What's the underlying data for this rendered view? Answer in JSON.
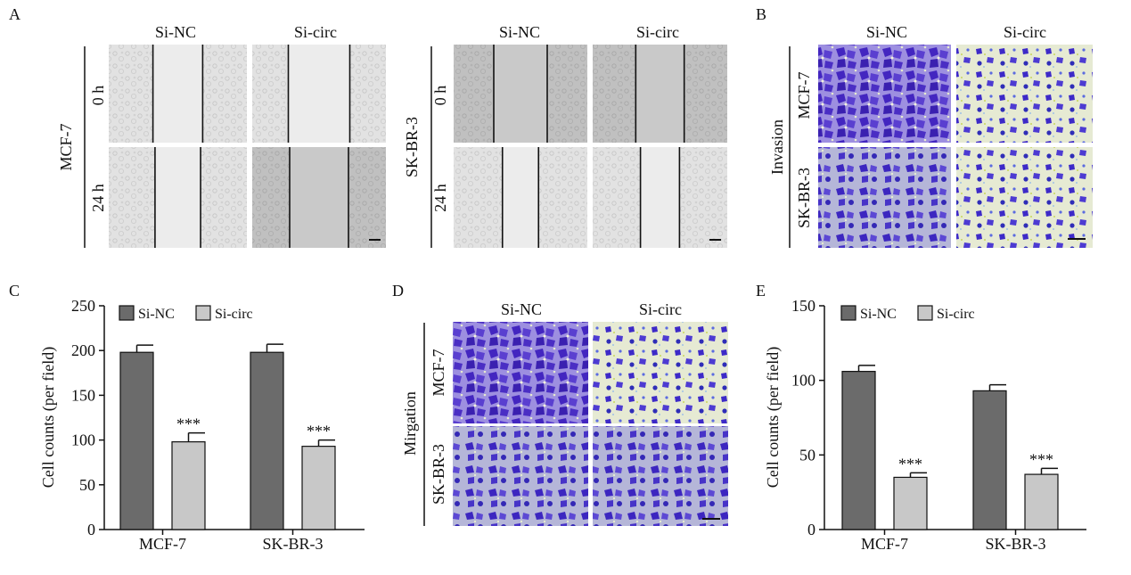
{
  "figure": {
    "panel_labels": [
      "A",
      "B",
      "C",
      "D",
      "E"
    ],
    "colors": {
      "si_nc_bar": "#6b6b6b",
      "si_circ_bar": "#c8c8c8",
      "scratch_bg_light": "#dedede",
      "scratch_bg_dark": "#b9b9b9",
      "stain_background": "#e8ecd7",
      "stain_cell": "#4a2ec4",
      "stain_cell_dark": "#2a1a9a"
    }
  },
  "panel_a": {
    "left_block": {
      "cell_line": "MCF-7",
      "columns": [
        "Si-NC",
        "Si-circ"
      ],
      "rows": [
        "0 h",
        "24 h"
      ],
      "gap_fraction": [
        [
          0.36,
          0.46
        ],
        [
          0.33,
          0.44
        ]
      ]
    },
    "right_block": {
      "cell_line": "SK-BR-3",
      "columns": [
        "Si-NC",
        "Si-circ"
      ],
      "rows": [
        "0 h",
        "24 h"
      ],
      "gap_fraction": [
        [
          0.4,
          0.36
        ],
        [
          0.27,
          0.29
        ]
      ]
    }
  },
  "panel_b": {
    "columns": [
      "Si-NC",
      "Si-circ"
    ],
    "rows": [
      "MCF-7",
      "SK-BR-3"
    ],
    "group_label": "Invasion"
  },
  "panel_d": {
    "columns": [
      "Si-NC",
      "Si-circ"
    ],
    "rows": [
      "MCF-7",
      "SK-BR-3"
    ],
    "group_label": "Mirgation"
  },
  "chart_data": [
    {
      "type": "bar",
      "panel": "C",
      "categories": [
        "MCF-7",
        "SK-BR-3"
      ],
      "series": [
        {
          "name": "Si-NC",
          "values": [
            198,
            198
          ],
          "errors": [
            8,
            9
          ]
        },
        {
          "name": "Si-circ",
          "values": [
            98,
            93
          ],
          "errors": [
            10,
            7
          ]
        }
      ],
      "significance": [
        "***",
        "***"
      ],
      "ylabel": "Cell counts (per field)",
      "ylim": [
        0,
        250
      ],
      "yticks": [
        0,
        50,
        100,
        150,
        200,
        250
      ],
      "legend": "top"
    },
    {
      "type": "bar",
      "panel": "E",
      "categories": [
        "MCF-7",
        "SK-BR-3"
      ],
      "series": [
        {
          "name": "Si-NC",
          "values": [
            106,
            93
          ],
          "errors": [
            4,
            4
          ]
        },
        {
          "name": "Si-circ",
          "values": [
            35,
            37
          ],
          "errors": [
            3,
            4
          ]
        }
      ],
      "significance": [
        "***",
        "***"
      ],
      "ylabel": "Cell counts (per field)",
      "ylim": [
        0,
        150
      ],
      "yticks": [
        0,
        50,
        100,
        150
      ],
      "legend": "top"
    }
  ]
}
